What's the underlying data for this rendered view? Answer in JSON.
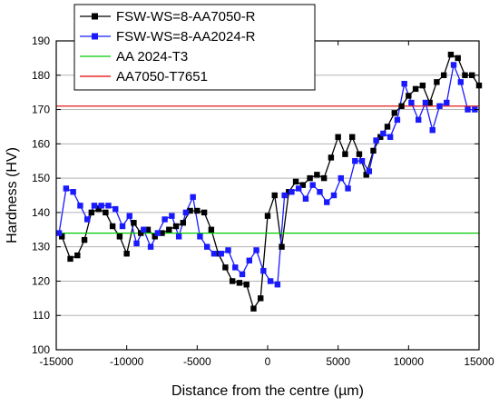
{
  "chart_data": {
    "type": "line",
    "xlabel": "Distance from the centre (µm)",
    "ylabel": "Hardness (HV)",
    "xlim": [
      -15000,
      15000
    ],
    "ylim": [
      100,
      190
    ],
    "xticks": [
      -15000,
      -10000,
      -5000,
      0,
      5000,
      10000,
      15000
    ],
    "yticks": [
      100,
      110,
      120,
      130,
      140,
      150,
      160,
      170,
      180,
      190
    ],
    "grid": "horizontal",
    "legend_position": "top-left",
    "series": [
      {
        "name": "FSW-WS=8-AA7050-R",
        "color": "#000000",
        "marker": "square",
        "x": [
          -14600,
          -14000,
          -13500,
          -13000,
          -12500,
          -12000,
          -11500,
          -11000,
          -10500,
          -10000,
          -9500,
          -9000,
          -8500,
          -8000,
          -7500,
          -7000,
          -6500,
          -6000,
          -5500,
          -5000,
          -4500,
          -4000,
          -3500,
          -3000,
          -2500,
          -2000,
          -1500,
          -1000,
          -500,
          0,
          500,
          1000,
          1500,
          2000,
          2500,
          3000,
          3500,
          4000,
          4500,
          5000,
          5500,
          6000,
          6500,
          7000,
          7500,
          8000,
          8500,
          9000,
          9500,
          10000,
          10500,
          11000,
          11500,
          12000,
          12500,
          13000,
          13500,
          14000,
          14500,
          15000
        ],
        "y": [
          133,
          126.5,
          127.5,
          132,
          140,
          141,
          140,
          136,
          133,
          128,
          137,
          134,
          135,
          133,
          134,
          135,
          136,
          137,
          140.5,
          140.5,
          140,
          135,
          128,
          124,
          120,
          119.5,
          119,
          112,
          115,
          139,
          145,
          130,
          146,
          149,
          148,
          150,
          151,
          150,
          156,
          162,
          157,
          162,
          157,
          151,
          158,
          162,
          165,
          169,
          171,
          174,
          176,
          177,
          172,
          178,
          180,
          186,
          185,
          180,
          180,
          177
        ]
      },
      {
        "name": "FSW-WS=8-AA2024-R",
        "color": "#1a1aff",
        "marker": "square",
        "x": [
          -14800,
          -14300,
          -13800,
          -13300,
          -12800,
          -12300,
          -11800,
          -11300,
          -10800,
          -10300,
          -9800,
          -9300,
          -8800,
          -8300,
          -7800,
          -7300,
          -6800,
          -6300,
          -5800,
          -5300,
          -4800,
          -4300,
          -3800,
          -3300,
          -2800,
          -2300,
          -1800,
          -1300,
          -800,
          -300,
          200,
          700,
          1200,
          1700,
          2200,
          2700,
          3200,
          3700,
          4200,
          4700,
          5200,
          5700,
          6200,
          6700,
          7200,
          7700,
          8200,
          8700,
          9200,
          9700,
          10200,
          10700,
          11200,
          11700,
          12200,
          12700,
          13200,
          13700,
          14200,
          14700
        ],
        "y": [
          134,
          147,
          146,
          142,
          138,
          142,
          142,
          142,
          141,
          136,
          139,
          131,
          135,
          130,
          134,
          138,
          139,
          133,
          140,
          144.5,
          133,
          130,
          128,
          128,
          129,
          124,
          122,
          126,
          129,
          123,
          120,
          119,
          145,
          146,
          147,
          144,
          148,
          146,
          143,
          145,
          150,
          147,
          155,
          155,
          152,
          161,
          163,
          162,
          167,
          177.5,
          172,
          167,
          172,
          164,
          171,
          172,
          183,
          178,
          170,
          170
        ]
      },
      {
        "name": "AA 2024-T3",
        "color": "#00cc00",
        "marker": "none",
        "x": [
          -15000,
          15000
        ],
        "y": [
          134,
          134
        ]
      },
      {
        "name": "AA7050-T7651",
        "color": "#e60000",
        "marker": "none",
        "x": [
          -15000,
          15000
        ],
        "y": [
          171,
          171
        ]
      }
    ]
  }
}
